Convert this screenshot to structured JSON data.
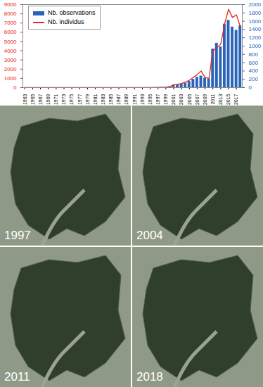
{
  "chart_data": {
    "type": "bar",
    "x": [
      1963,
      1964,
      1965,
      1966,
      1967,
      1968,
      1969,
      1970,
      1971,
      1972,
      1973,
      1974,
      1975,
      1976,
      1977,
      1978,
      1979,
      1980,
      1981,
      1982,
      1983,
      1984,
      1985,
      1986,
      1987,
      1988,
      1989,
      1990,
      1991,
      1992,
      1993,
      1994,
      1995,
      1996,
      1997,
      1998,
      1999,
      2000,
      2001,
      2002,
      2003,
      2004,
      2005,
      2006,
      2007,
      2008,
      2009,
      2010,
      2011,
      2012,
      2013,
      2014,
      2015,
      2016,
      2017,
      2018
    ],
    "series": [
      {
        "name": "Nb. observations",
        "type": "bar",
        "color": "#2a64b8",
        "axis": "y2",
        "values": [
          0,
          0,
          0,
          0,
          0,
          0,
          0,
          0,
          0,
          0,
          0,
          0,
          0,
          0,
          0,
          0,
          0,
          0,
          0,
          0,
          0,
          0,
          0,
          0,
          0,
          0,
          0,
          0,
          0,
          0,
          0,
          0,
          1,
          2,
          3,
          5,
          8,
          20,
          60,
          70,
          90,
          110,
          150,
          200,
          250,
          280,
          230,
          210,
          930,
          1070,
          980,
          1530,
          1620,
          1460,
          1380,
          1490
        ]
      },
      {
        "name": "Nb. individus",
        "type": "line",
        "color": "#e8261c",
        "values": [
          0,
          0,
          0,
          0,
          0,
          0,
          0,
          0,
          0,
          0,
          0,
          0,
          0,
          0,
          0,
          0,
          0,
          0,
          0,
          0,
          0,
          0,
          0,
          0,
          0,
          0,
          0,
          0,
          0,
          0,
          0,
          0,
          5,
          10,
          20,
          30,
          50,
          100,
          300,
          350,
          450,
          600,
          800,
          1100,
          1400,
          1800,
          1100,
          1000,
          4000,
          4300,
          4700,
          6900,
          8500,
          7600,
          7900,
          6600
        ]
      }
    ],
    "xlim": [
      1962.5,
      2018.5
    ],
    "xticks": [
      1963,
      1965,
      1967,
      1969,
      1971,
      1973,
      1975,
      1977,
      1979,
      1981,
      1983,
      1985,
      1987,
      1989,
      1991,
      1993,
      1995,
      1997,
      1999,
      2001,
      2003,
      2005,
      2007,
      2009,
      2011,
      2013,
      2015,
      2017
    ],
    "ylim": [
      0,
      9000
    ],
    "yticks": [
      0,
      1000,
      2000,
      3000,
      4000,
      5000,
      6000,
      7000,
      8000,
      9000
    ],
    "y2lim": [
      0,
      2000
    ],
    "y2ticks": [
      0,
      200,
      400,
      600,
      800,
      1000,
      1200,
      1400,
      1600,
      1800,
      2000
    ],
    "grid": false,
    "legend": "top-left",
    "maps": [
      {
        "label": "1997"
      },
      {
        "label": "2004"
      },
      {
        "label": "2011"
      },
      {
        "label": "2018"
      }
    ]
  }
}
